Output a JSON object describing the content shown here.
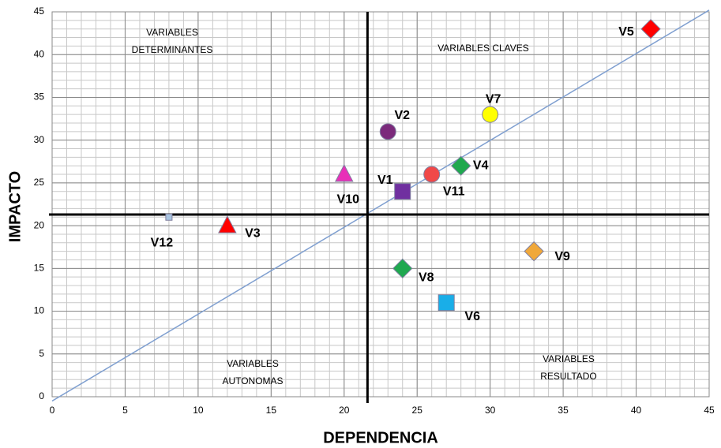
{
  "chart_data": {
    "type": "scatter",
    "x_label": "DEPENDENCIA",
    "y_label": "IMPACTO",
    "xlim": [
      0,
      45
    ],
    "ylim": [
      0,
      45
    ],
    "xticks": [
      0,
      5,
      10,
      15,
      20,
      25,
      30,
      35,
      40,
      45
    ],
    "yticks": [
      0,
      5,
      10,
      15,
      20,
      25,
      30,
      35,
      40,
      45
    ],
    "grid": true,
    "minor_grid_step": 1,
    "quadrant_lines": {
      "x": 21.6,
      "y": 21.3
    },
    "diagonal": {
      "x": [
        0,
        45
      ],
      "y": [
        -0.5,
        45.2
      ],
      "color": "#7f9fd0"
    },
    "quadrant_labels": [
      [
        "VARIABLES",
        "DETERMINANTES"
      ],
      [
        "VARIABLES CLAVES"
      ],
      [
        "VARIABLES",
        "AUTONOMAS"
      ],
      [
        "VARIABLES",
        "RESULTADO"
      ]
    ],
    "series": [
      {
        "name": "V1",
        "color": "#7030a0",
        "marker": "square",
        "x": [
          24
        ],
        "values": [
          24
        ]
      },
      {
        "name": "V2",
        "color": "#7b2a7b",
        "marker": "circle",
        "x": [
          23
        ],
        "values": [
          31
        ]
      },
      {
        "name": "V3",
        "color": "#ff0000",
        "marker": "triangle",
        "x": [
          12
        ],
        "values": [
          20
        ]
      },
      {
        "name": "V4",
        "color": "#1fa84f",
        "marker": "diamond",
        "x": [
          28
        ],
        "values": [
          27
        ]
      },
      {
        "name": "V5",
        "color": "#ff0000",
        "marker": "diamond",
        "x": [
          41
        ],
        "values": [
          43
        ]
      },
      {
        "name": "V6",
        "color": "#19aee8",
        "marker": "square",
        "x": [
          27
        ],
        "values": [
          11
        ]
      },
      {
        "name": "V7",
        "color": "#ffff00",
        "marker": "circle",
        "x": [
          30
        ],
        "values": [
          33
        ]
      },
      {
        "name": "V8",
        "color": "#1fa84f",
        "marker": "diamond",
        "x": [
          24
        ],
        "values": [
          15
        ]
      },
      {
        "name": "V9",
        "color": "#f0a83a",
        "marker": "diamond",
        "x": [
          33
        ],
        "values": [
          17
        ]
      },
      {
        "name": "V10",
        "color": "#e82fb8",
        "marker": "triangle",
        "x": [
          20
        ],
        "values": [
          26
        ]
      },
      {
        "name": "V11",
        "color": "#f04848",
        "marker": "circle",
        "x": [
          26
        ],
        "values": [
          26
        ]
      },
      {
        "name": "V12",
        "color": "#a8c4e0",
        "marker": "smallsquare",
        "x": [
          8
        ],
        "values": [
          21
        ]
      }
    ]
  }
}
